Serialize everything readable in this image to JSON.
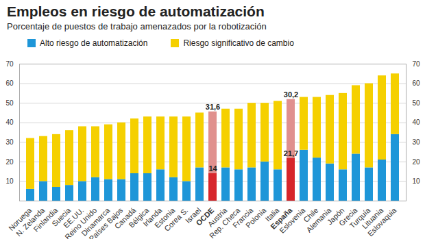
{
  "chart_data": {
    "type": "bar",
    "stacked": true,
    "title": "Empleos en riesgo de automatización",
    "subtitle": "Porcentaje de puestos de trabajo amenazados  por la robotización",
    "legend": "top-left",
    "grid": true,
    "ylim": [
      0,
      70
    ],
    "yticks": [
      10,
      20,
      30,
      40,
      50,
      60,
      70
    ],
    "categories": [
      "Noruega",
      "N. Zelanda",
      "Finlandia",
      "Suecia",
      "EE.UU.",
      "Reino Unido",
      "Dinamarca",
      "Países Bajos",
      "Canadá",
      "Bélgica",
      "Irlanda",
      "Estonia",
      "Corea S.",
      "Israel",
      "OCDE",
      "Austria",
      "Rep. Checa",
      "Francia",
      "Polonia",
      "Italia",
      "España",
      "Eslovenia",
      "Chile",
      "Alemania",
      "Japón",
      "Grecia",
      "Turquía",
      "Lituania",
      "Eslovaquia"
    ],
    "series": [
      {
        "name": "Alto riesgo de automatización",
        "color": "#1e96d8",
        "values": [
          6,
          10,
          7,
          8,
          10,
          12,
          11,
          11,
          14,
          14,
          16,
          12,
          10,
          17,
          14,
          17,
          16,
          17,
          20,
          16,
          21.7,
          26,
          22,
          19,
          16,
          24,
          17,
          21,
          34
        ],
        "value_labels": [
          null,
          null,
          null,
          null,
          null,
          null,
          null,
          null,
          null,
          null,
          null,
          null,
          null,
          null,
          "14",
          null,
          null,
          null,
          null,
          null,
          "21,7",
          null,
          null,
          null,
          null,
          null,
          null,
          null,
          null
        ],
        "colors": [
          "#1e96d8",
          "#1e96d8",
          "#1e96d8",
          "#1e96d8",
          "#1e96d8",
          "#1e96d8",
          "#1e96d8",
          "#1e96d8",
          "#1e96d8",
          "#1e96d8",
          "#1e96d8",
          "#1e96d8",
          "#1e96d8",
          "#1e96d8",
          "#d7262b",
          "#1e96d8",
          "#1e96d8",
          "#1e96d8",
          "#1e96d8",
          "#1e96d8",
          "#d7262b",
          "#1e96d8",
          "#1e96d8",
          "#1e96d8",
          "#1e96d8",
          "#1e96d8",
          "#1e96d8",
          "#1e96d8",
          "#1e96d8"
        ]
      },
      {
        "name": "Riesgo significativo de cambio",
        "color": "#f5d000",
        "values": [
          26,
          23,
          27,
          28,
          28,
          26,
          28,
          29,
          28,
          29,
          27,
          31,
          33,
          28,
          31.6,
          30,
          31,
          33,
          30,
          35,
          30.2,
          27,
          31,
          35,
          39,
          35,
          43,
          43,
          31
        ],
        "value_labels": [
          null,
          null,
          null,
          null,
          null,
          null,
          null,
          null,
          null,
          null,
          null,
          null,
          null,
          null,
          "31,6",
          null,
          null,
          null,
          null,
          null,
          "30,2",
          null,
          null,
          null,
          null,
          null,
          null,
          null,
          null
        ],
        "colors": [
          "#f5d000",
          "#f5d000",
          "#f5d000",
          "#f5d000",
          "#f5d000",
          "#f5d000",
          "#f5d000",
          "#f5d000",
          "#f5d000",
          "#f5d000",
          "#f5d000",
          "#f5d000",
          "#f5d000",
          "#f5d000",
          "#e0908e",
          "#f5d000",
          "#f5d000",
          "#f5d000",
          "#f5d000",
          "#f5d000",
          "#e0908e",
          "#f5d000",
          "#f5d000",
          "#f5d000",
          "#f5d000",
          "#f5d000",
          "#f5d000",
          "#f5d000",
          "#f5d000"
        ]
      }
    ]
  }
}
